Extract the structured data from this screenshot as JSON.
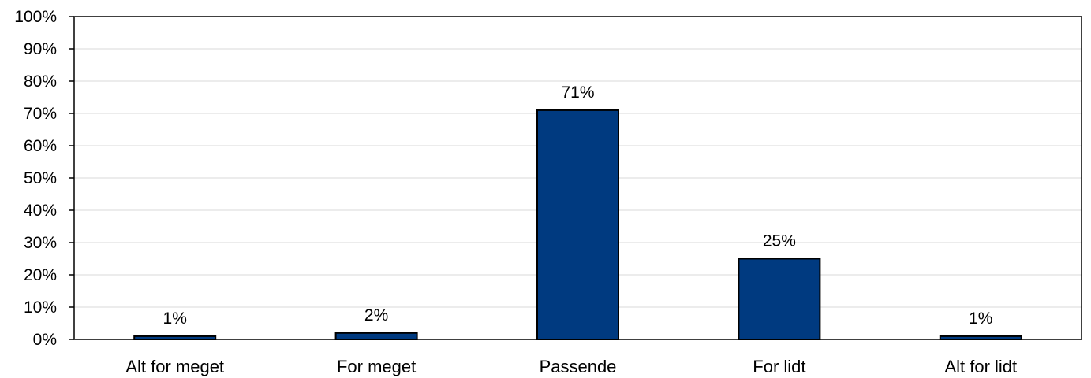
{
  "chart_data": {
    "type": "bar",
    "categories": [
      "Alt for meget",
      "For meget",
      "Passende",
      "For lidt",
      "Alt for lidt"
    ],
    "values": [
      1,
      2,
      71,
      25,
      1
    ],
    "data_labels": [
      "1%",
      "2%",
      "71%",
      "25%",
      "1%"
    ],
    "ylim": [
      0,
      100
    ],
    "yticks": [
      0,
      10,
      20,
      30,
      40,
      50,
      60,
      70,
      80,
      90,
      100
    ],
    "ytick_labels": [
      "0%",
      "10%",
      "20%",
      "30%",
      "40%",
      "50%",
      "60%",
      "70%",
      "80%",
      "90%",
      "100%"
    ],
    "title": "",
    "xlabel": "",
    "ylabel": "",
    "grid": true,
    "legend": "none",
    "bar_color": "#003a80",
    "bar_border_color": "#000000",
    "grid_color": "#d9d9d9"
  }
}
